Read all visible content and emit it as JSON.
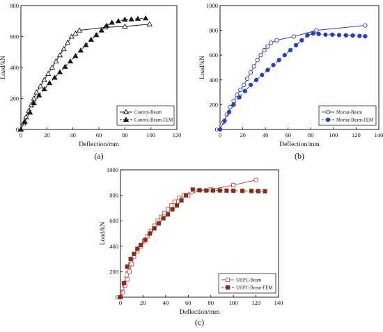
{
  "chart_data": [
    {
      "panel": "(a)",
      "type": "line",
      "xlabel": "Deflection/mm",
      "ylabel": "Load/kN",
      "xlim": [
        0,
        120
      ],
      "ylim": [
        0,
        800
      ],
      "xticks": [
        0,
        20,
        40,
        60,
        80,
        100,
        120
      ],
      "yticks": [
        0,
        200,
        400,
        600,
        800
      ],
      "legend_position": "bottom-right",
      "series": [
        {
          "name": "Control-Beam",
          "color": "#1a1a1a",
          "marker": "triangle-open",
          "dash": "solid",
          "x": [
            0,
            2,
            4,
            6,
            8,
            10,
            12,
            15,
            18,
            21,
            24,
            27,
            30,
            33,
            36,
            39,
            42,
            45,
            65,
            80,
            99
          ],
          "y": [
            0,
            40,
            80,
            120,
            160,
            200,
            240,
            280,
            320,
            360,
            400,
            440,
            480,
            520,
            560,
            600,
            620,
            640,
            660,
            665,
            680
          ]
        },
        {
          "name": "Control-Beam-FEM",
          "color": "#1a1a1a",
          "marker": "triangle-filled",
          "dash": "dash",
          "x": [
            0,
            3,
            7,
            10,
            14,
            18,
            22,
            26,
            30,
            34,
            38,
            42,
            46,
            50,
            54,
            58,
            62,
            66,
            70,
            75,
            80,
            85,
            90,
            96
          ],
          "y": [
            0,
            50,
            110,
            170,
            220,
            260,
            300,
            335,
            370,
            405,
            440,
            475,
            510,
            545,
            580,
            610,
            640,
            670,
            690,
            700,
            710,
            712,
            715,
            718
          ]
        }
      ]
    },
    {
      "panel": "(b)",
      "type": "line",
      "xlabel": "Deflection/mm",
      "ylabel": "Load/kN",
      "xlim": [
        0,
        140
      ],
      "ylim": [
        0,
        1000
      ],
      "xticks": [
        0,
        20,
        40,
        60,
        80,
        100,
        120,
        140
      ],
      "yticks": [
        0,
        200,
        400,
        600,
        800,
        1000
      ],
      "legend_position": "bottom-right",
      "series": [
        {
          "name": "Mortar-Beam",
          "color": "#2a3fbf",
          "marker": "circle-open",
          "dash": "solid",
          "x": [
            0,
            3,
            6,
            9,
            12,
            15,
            18,
            21,
            24,
            27,
            30,
            33,
            36,
            39,
            42,
            45,
            50,
            65,
            85,
            128
          ],
          "y": [
            0,
            60,
            120,
            180,
            230,
            280,
            320,
            360,
            410,
            460,
            510,
            560,
            600,
            640,
            670,
            700,
            720,
            750,
            800,
            840
          ]
        },
        {
          "name": "Mortar-Beam-FEM",
          "color": "#2a3fbf",
          "marker": "circle-filled",
          "dash": "dash",
          "x": [
            0,
            4,
            8,
            12,
            17,
            22,
            27,
            32,
            37,
            42,
            47,
            52,
            57,
            62,
            67,
            72,
            77,
            82,
            87,
            93,
            99,
            105,
            111,
            117,
            123,
            128
          ],
          "y": [
            0,
            70,
            140,
            200,
            260,
            310,
            360,
            400,
            440,
            480,
            520,
            560,
            600,
            640,
            680,
            720,
            760,
            775,
            770,
            765,
            765,
            762,
            760,
            758,
            755,
            752
          ]
        }
      ]
    },
    {
      "panel": "(c)",
      "type": "line",
      "xlabel": "Deflection/mm",
      "ylabel": "Load/kN",
      "xlim": [
        0,
        140
      ],
      "ylim": [
        0,
        1000
      ],
      "xticks": [
        0,
        20,
        40,
        60,
        80,
        100,
        120,
        140
      ],
      "yticks": [
        0,
        200,
        400,
        600,
        800,
        1000
      ],
      "legend_position": "bottom-right",
      "series": [
        {
          "name": "UHPC-Beam",
          "color": "#c0504d",
          "marker": "square-open",
          "dash": "solid",
          "x": [
            0,
            2,
            4,
            6,
            8,
            10,
            12,
            15,
            18,
            21,
            24,
            27,
            30,
            33,
            36,
            39,
            42,
            45,
            48,
            52,
            56,
            60,
            70,
            80,
            100,
            120
          ],
          "y": [
            0,
            40,
            90,
            140,
            200,
            260,
            320,
            360,
            400,
            440,
            480,
            520,
            560,
            600,
            630,
            660,
            690,
            720,
            750,
            780,
            800,
            800,
            840,
            845,
            880,
            920
          ]
        },
        {
          "name": "UHPC-Beam-FEM",
          "color": "#8a2a1a",
          "marker": "square-filled",
          "dash": "dash",
          "x": [
            0,
            3,
            6,
            9,
            12,
            15,
            18,
            22,
            26,
            30,
            34,
            38,
            42,
            46,
            50,
            54,
            58,
            64,
            70,
            76,
            82,
            88,
            94,
            100,
            108,
            116,
            122,
            128
          ],
          "y": [
            0,
            110,
            240,
            300,
            340,
            380,
            410,
            450,
            500,
            540,
            580,
            620,
            650,
            690,
            720,
            760,
            800,
            845,
            840,
            838,
            838,
            838,
            837,
            836,
            835,
            834,
            833,
            832
          ]
        }
      ]
    }
  ]
}
